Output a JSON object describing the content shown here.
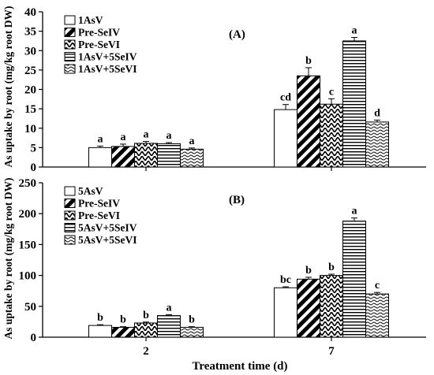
{
  "chart_data": [
    {
      "type": "bar",
      "panel_label": "(A)",
      "ylabel": "As uptake by root (mg/kg root DW)",
      "ylim": [
        0,
        40
      ],
      "yticks": [
        0,
        5,
        10,
        15,
        20,
        25,
        30,
        35,
        40
      ],
      "categories": [
        "2",
        "7"
      ],
      "legend_position": "top-left",
      "series": [
        {
          "name": "1AsV",
          "pattern": "white",
          "values": [
            5.0,
            14.8
          ],
          "errors": [
            0.4,
            1.3
          ],
          "labels": [
            "a",
            "cd"
          ]
        },
        {
          "name": "Pre-SeIV",
          "pattern": "thick-diagonal",
          "values": [
            5.3,
            23.5
          ],
          "errors": [
            0.6,
            2.1
          ],
          "labels": [
            "a",
            "b"
          ]
        },
        {
          "name": "Pre-SeVI",
          "pattern": "chevron",
          "values": [
            6.1,
            16.2
          ],
          "errors": [
            0.5,
            1.4
          ],
          "labels": [
            "a",
            "c"
          ]
        },
        {
          "name": "1AsV+5SeIV",
          "pattern": "horizontal",
          "values": [
            6.0,
            32.5
          ],
          "errors": [
            0.3,
            0.9
          ],
          "labels": [
            "a",
            "a"
          ]
        },
        {
          "name": "1AsV+5SeVI",
          "pattern": "wave",
          "values": [
            4.6,
            11.6
          ],
          "errors": [
            0.3,
            0.5
          ],
          "labels": [
            "a",
            "d"
          ]
        }
      ]
    },
    {
      "type": "bar",
      "panel_label": "(B)",
      "ylabel": "As uptake by root (mg/kg root DW)",
      "xlabel": "Treatment time (d)",
      "ylim": [
        0,
        250
      ],
      "yticks": [
        0,
        50,
        100,
        150,
        200,
        250
      ],
      "categories": [
        "2",
        "7"
      ],
      "legend_position": "top-left",
      "series": [
        {
          "name": "5AsV",
          "pattern": "white",
          "values": [
            19,
            80
          ],
          "errors": [
            1.2,
            1.6
          ],
          "labels": [
            "b",
            "bc"
          ]
        },
        {
          "name": "Pre-SeIV",
          "pattern": "thick-diagonal",
          "values": [
            16,
            94
          ],
          "errors": [
            1.0,
            3.0
          ],
          "labels": [
            "b",
            "b"
          ]
        },
        {
          "name": "Pre-SeVI",
          "pattern": "chevron",
          "values": [
            23,
            100
          ],
          "errors": [
            1.5,
            2.0
          ],
          "labels": [
            "b",
            "b"
          ]
        },
        {
          "name": "5AsV+5SeIV",
          "pattern": "horizontal",
          "values": [
            35,
            188
          ],
          "errors": [
            1.5,
            5.0
          ],
          "labels": [
            "a",
            "a"
          ]
        },
        {
          "name": "5AsV+5SeVI",
          "pattern": "wave",
          "values": [
            16,
            70
          ],
          "errors": [
            1.0,
            2.5
          ],
          "labels": [
            "b",
            "c"
          ]
        }
      ]
    }
  ]
}
